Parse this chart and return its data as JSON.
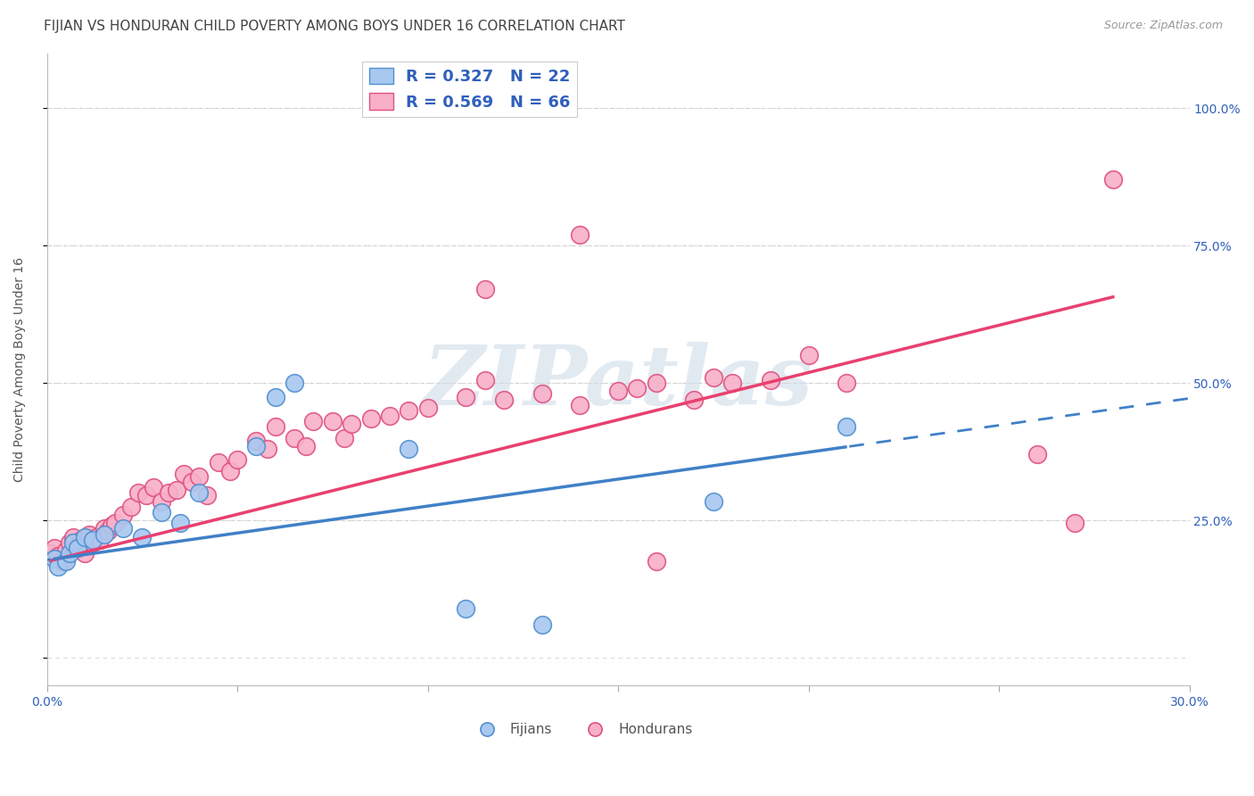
{
  "title": "FIJIAN VS HONDURAN CHILD POVERTY AMONG BOYS UNDER 16 CORRELATION CHART",
  "source": "Source: ZipAtlas.com",
  "ylabel": "Child Poverty Among Boys Under 16",
  "xlim": [
    0.0,
    0.3
  ],
  "ylim": [
    -0.05,
    1.1
  ],
  "plot_ylim": [
    0.0,
    1.0
  ],
  "right_yticks": [
    0.25,
    0.5,
    0.75,
    1.0
  ],
  "right_ytick_labels": [
    "25.0%",
    "50.0%",
    "75.0%",
    "100.0%"
  ],
  "fijian_color": "#a8c8f0",
  "honduran_color": "#f8b0c8",
  "fijian_edge_color": "#5090d0",
  "honduran_edge_color": "#e05080",
  "fijian_line_color": "#4080c8",
  "honduran_line_color": "#e84070",
  "legend_text_color": "#3060bb",
  "fijian_R": 0.327,
  "fijian_N": 22,
  "honduran_R": 0.569,
  "honduran_N": 66,
  "fijians_x": [
    0.002,
    0.003,
    0.005,
    0.006,
    0.007,
    0.008,
    0.01,
    0.012,
    0.015,
    0.02,
    0.025,
    0.03,
    0.035,
    0.04,
    0.055,
    0.06,
    0.065,
    0.095,
    0.11,
    0.13,
    0.175,
    0.21
  ],
  "fijians_y": [
    0.18,
    0.165,
    0.175,
    0.19,
    0.21,
    0.2,
    0.22,
    0.215,
    0.225,
    0.235,
    0.22,
    0.265,
    0.245,
    0.3,
    0.385,
    0.475,
    0.5,
    0.38,
    0.09,
    0.06,
    0.285,
    0.42
  ],
  "hondurans_x": [
    0.001,
    0.002,
    0.003,
    0.004,
    0.005,
    0.006,
    0.007,
    0.008,
    0.009,
    0.01,
    0.011,
    0.012,
    0.013,
    0.014,
    0.015,
    0.016,
    0.017,
    0.018,
    0.02,
    0.022,
    0.024,
    0.026,
    0.028,
    0.03,
    0.032,
    0.034,
    0.036,
    0.038,
    0.04,
    0.042,
    0.045,
    0.048,
    0.05,
    0.055,
    0.058,
    0.06,
    0.065,
    0.068,
    0.07,
    0.075,
    0.078,
    0.08,
    0.085,
    0.09,
    0.095,
    0.1,
    0.11,
    0.115,
    0.12,
    0.13,
    0.14,
    0.15,
    0.155,
    0.16,
    0.17,
    0.175,
    0.18,
    0.19,
    0.2,
    0.21,
    0.115,
    0.14,
    0.16,
    0.26,
    0.27,
    0.28
  ],
  "hondurans_y": [
    0.19,
    0.2,
    0.185,
    0.175,
    0.195,
    0.21,
    0.22,
    0.205,
    0.215,
    0.19,
    0.225,
    0.21,
    0.22,
    0.215,
    0.235,
    0.23,
    0.24,
    0.245,
    0.26,
    0.275,
    0.3,
    0.295,
    0.31,
    0.285,
    0.3,
    0.305,
    0.335,
    0.32,
    0.33,
    0.295,
    0.355,
    0.34,
    0.36,
    0.395,
    0.38,
    0.42,
    0.4,
    0.385,
    0.43,
    0.43,
    0.4,
    0.425,
    0.435,
    0.44,
    0.45,
    0.455,
    0.475,
    0.505,
    0.47,
    0.48,
    0.46,
    0.485,
    0.49,
    0.5,
    0.47,
    0.51,
    0.5,
    0.505,
    0.55,
    0.5,
    0.67,
    0.77,
    0.175,
    0.37,
    0.245,
    0.87
  ],
  "watermark": "ZIPatlas",
  "background_color": "#ffffff",
  "grid_color": "#cccccc",
  "fijian_line_intercept": 0.178,
  "fijian_line_slope": 0.98,
  "honduran_line_intercept": 0.175,
  "honduran_line_slope": 1.72
}
